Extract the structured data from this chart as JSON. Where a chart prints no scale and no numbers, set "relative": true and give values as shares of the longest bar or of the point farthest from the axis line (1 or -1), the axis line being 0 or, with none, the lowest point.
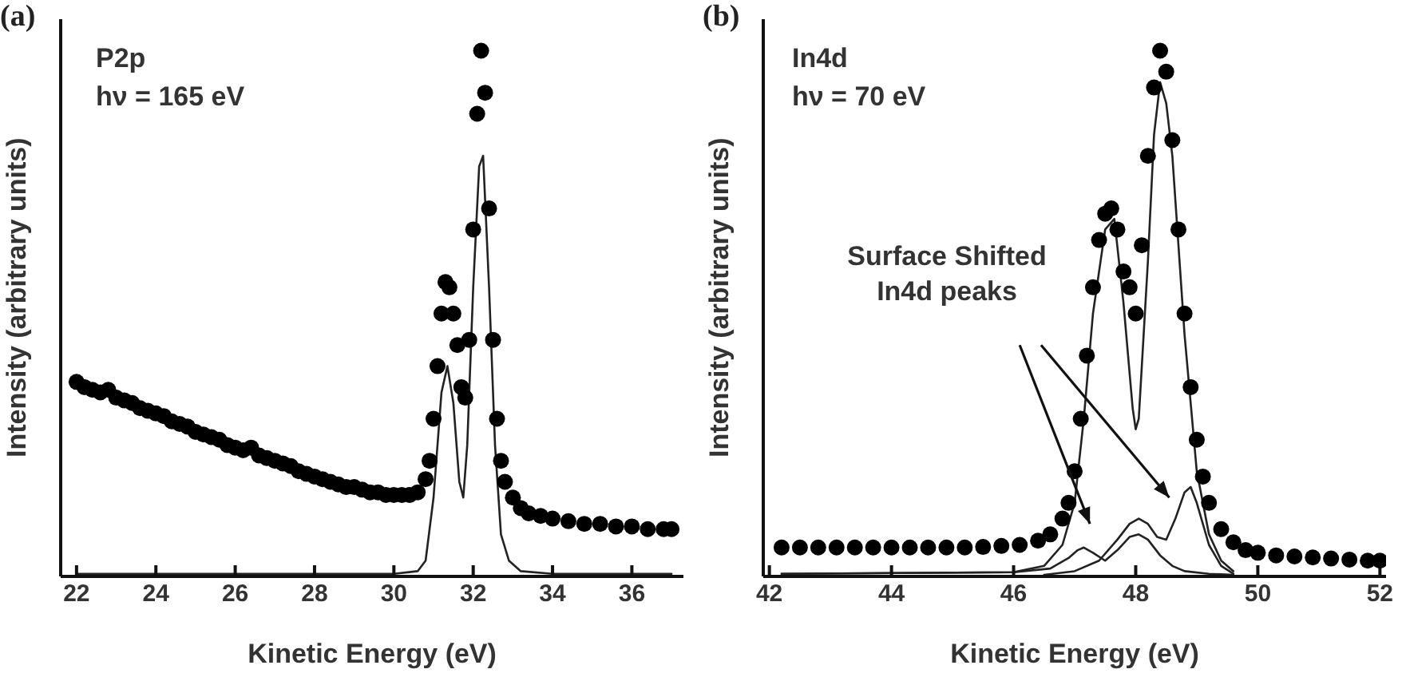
{
  "chart_data": [
    {
      "type": "scatter",
      "title": "(a)",
      "xlabel": "Kinetic Energy (eV)",
      "ylabel": "Intensity (arbitrary units)",
      "relative": true,
      "xlim": [
        21.6,
        37.3
      ],
      "xticks": [
        22,
        24,
        26,
        28,
        30,
        32,
        34,
        36
      ],
      "annotations": [
        "P2p",
        "hν = 165 eV"
      ],
      "series": [
        {
          "marker": "circle",
          "color": "#000000",
          "x": [
            22.0,
            22.2,
            22.4,
            22.6,
            22.8,
            23.0,
            23.2,
            23.4,
            23.6,
            23.8,
            24.0,
            24.2,
            24.4,
            24.6,
            24.8,
            25.0,
            25.2,
            25.4,
            25.6,
            25.8,
            26.0,
            26.2,
            26.4,
            26.6,
            26.8,
            27.0,
            27.2,
            27.4,
            27.6,
            27.8,
            28.0,
            28.2,
            28.4,
            28.6,
            28.8,
            29.0,
            29.2,
            29.4,
            29.6,
            29.8,
            30.0,
            30.2,
            30.4,
            30.6,
            30.8,
            30.9,
            31.0,
            31.1,
            31.2,
            31.3,
            31.4,
            31.5,
            31.6,
            31.7,
            31.8,
            31.9,
            32.0,
            32.1,
            32.2,
            32.3,
            32.4,
            32.5,
            32.6,
            32.7,
            32.8,
            33.0,
            33.2,
            33.4,
            33.7,
            34.0,
            34.4,
            34.8,
            35.2,
            35.6,
            36.0,
            36.4,
            36.8,
            37.0
          ],
          "values": [
            0.37,
            0.36,
            0.355,
            0.35,
            0.355,
            0.34,
            0.335,
            0.33,
            0.32,
            0.315,
            0.31,
            0.305,
            0.295,
            0.29,
            0.285,
            0.275,
            0.27,
            0.265,
            0.26,
            0.25,
            0.245,
            0.24,
            0.245,
            0.23,
            0.225,
            0.22,
            0.215,
            0.21,
            0.2,
            0.195,
            0.19,
            0.185,
            0.18,
            0.175,
            0.17,
            0.17,
            0.165,
            0.16,
            0.16,
            0.155,
            0.155,
            0.155,
            0.155,
            0.16,
            0.185,
            0.22,
            0.3,
            0.4,
            0.5,
            0.56,
            0.55,
            0.5,
            0.44,
            0.36,
            0.34,
            0.45,
            0.66,
            0.88,
            1.0,
            0.92,
            0.7,
            0.45,
            0.3,
            0.22,
            0.18,
            0.15,
            0.13,
            0.12,
            0.115,
            0.11,
            0.105,
            0.1,
            0.1,
            0.095,
            0.095,
            0.09,
            0.09,
            0.09
          ]
        },
        {
          "type": "line",
          "marker": "none",
          "color": "#222222",
          "x": [
            22.0,
            30.0,
            30.6,
            30.8,
            31.0,
            31.2,
            31.35,
            31.5,
            31.65,
            31.75,
            31.85,
            32.0,
            32.15,
            32.25,
            32.4,
            32.55,
            32.7,
            32.9,
            33.2,
            34.0,
            37.0
          ],
          "values": [
            0.005,
            0.005,
            0.01,
            0.03,
            0.15,
            0.35,
            0.4,
            0.33,
            0.18,
            0.15,
            0.25,
            0.55,
            0.78,
            0.8,
            0.55,
            0.25,
            0.08,
            0.03,
            0.01,
            0.005,
            0.005
          ]
        }
      ]
    },
    {
      "type": "scatter",
      "title": "(b)",
      "xlabel": "Kinetic Energy (eV)",
      "ylabel": "Intensity (arbitrary units)",
      "relative": true,
      "xlim": [
        41.9,
        52.1
      ],
      "xticks": [
        42,
        44,
        46,
        48,
        50,
        52
      ],
      "annotations": [
        "In4d",
        "hν = 70 eV",
        "Surface Shifted In4d peaks"
      ],
      "series": [
        {
          "marker": "circle",
          "color": "#000000",
          "x": [
            42.2,
            42.5,
            42.8,
            43.1,
            43.4,
            43.7,
            44.0,
            44.3,
            44.6,
            44.9,
            45.2,
            45.5,
            45.8,
            46.1,
            46.4,
            46.6,
            46.8,
            46.9,
            47.0,
            47.1,
            47.2,
            47.3,
            47.4,
            47.5,
            47.6,
            47.7,
            47.8,
            47.9,
            48.0,
            48.1,
            48.2,
            48.3,
            48.4,
            48.5,
            48.6,
            48.7,
            48.8,
            48.9,
            49.0,
            49.1,
            49.2,
            49.4,
            49.6,
            49.8,
            50.0,
            50.3,
            50.6,
            50.9,
            51.2,
            51.5,
            51.8,
            52.0
          ],
          "values": [
            0.055,
            0.055,
            0.055,
            0.055,
            0.055,
            0.055,
            0.055,
            0.055,
            0.055,
            0.055,
            0.055,
            0.056,
            0.058,
            0.06,
            0.068,
            0.08,
            0.11,
            0.14,
            0.2,
            0.3,
            0.42,
            0.55,
            0.64,
            0.69,
            0.7,
            0.66,
            0.58,
            0.55,
            0.5,
            0.63,
            0.8,
            0.93,
            1.0,
            0.96,
            0.83,
            0.66,
            0.5,
            0.36,
            0.26,
            0.19,
            0.14,
            0.09,
            0.065,
            0.05,
            0.045,
            0.04,
            0.038,
            0.036,
            0.034,
            0.032,
            0.03,
            0.03
          ]
        },
        {
          "type": "line",
          "marker": "none",
          "color": "#222222",
          "x": [
            42.2,
            46.0,
            46.5,
            46.8,
            47.0,
            47.15,
            47.3,
            47.5,
            47.65,
            47.8,
            47.95,
            48.0,
            48.05,
            48.2,
            48.3,
            48.4,
            48.5,
            48.6,
            48.8,
            49.0,
            49.2,
            49.4,
            49.6
          ],
          "values": [
            0.005,
            0.008,
            0.02,
            0.06,
            0.14,
            0.3,
            0.5,
            0.66,
            0.68,
            0.52,
            0.32,
            0.28,
            0.3,
            0.6,
            0.84,
            0.94,
            0.9,
            0.8,
            0.46,
            0.2,
            0.08,
            0.03,
            0.01
          ]
        },
        {
          "type": "line",
          "marker": "none",
          "color": "#222222",
          "x": [
            42.2,
            46.0,
            46.6,
            46.9,
            47.05,
            47.15,
            47.3,
            47.5,
            47.7,
            47.9,
            48.05,
            48.2,
            48.4,
            48.6,
            48.8,
            49.2,
            49.6
          ],
          "values": [
            0.005,
            0.008,
            0.015,
            0.035,
            0.05,
            0.055,
            0.045,
            0.03,
            0.05,
            0.075,
            0.08,
            0.07,
            0.04,
            0.02,
            0.01,
            0.005,
            0.003
          ]
        },
        {
          "type": "line",
          "marker": "none",
          "color": "#222222",
          "x": [
            46.5,
            47.0,
            47.4,
            47.7,
            47.9,
            48.05,
            48.2,
            48.35,
            48.5,
            48.65,
            48.8,
            48.9,
            49.0,
            49.2,
            49.4,
            49.6
          ],
          "values": [
            0.003,
            0.01,
            0.03,
            0.07,
            0.1,
            0.11,
            0.1,
            0.075,
            0.07,
            0.11,
            0.16,
            0.17,
            0.14,
            0.06,
            0.02,
            0.005
          ]
        }
      ]
    }
  ]
}
